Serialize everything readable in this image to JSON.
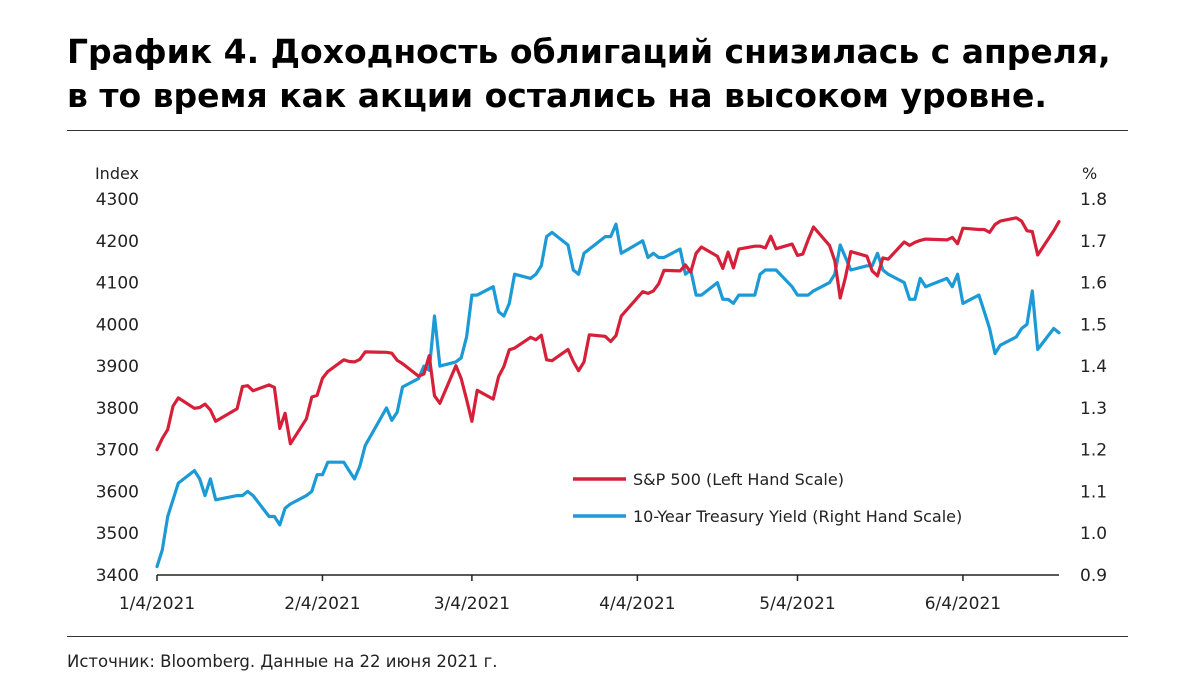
{
  "title": {
    "line1": "График 4. Доходность облигаций снизилась с апреля,",
    "line2": "в то время как акции остались на высоком уровне."
  },
  "source": "Источник: Bloomberg. Данные на 22 июня 2021 г.",
  "colors": {
    "sp500": "#d6203a",
    "treasury": "#1b9ad6",
    "axis": "#222222"
  },
  "chart_data": {
    "type": "line",
    "grid": false,
    "legend_position": "bottom-right",
    "left_axis": {
      "unit": "Index",
      "range": [
        3400,
        4300
      ],
      "ticks": [
        "3400",
        "3500",
        "3600",
        "3700",
        "3800",
        "3900",
        "4000",
        "4100",
        "4200",
        "4300"
      ]
    },
    "right_axis": {
      "unit": "%",
      "range": [
        0.9,
        1.8
      ],
      "ticks": [
        "0.9",
        "1.0",
        "1.1",
        "1.2",
        "1.3",
        "1.4",
        "1.5",
        "1.6",
        "1.7",
        "1.8"
      ]
    },
    "x_axis": {
      "range": [
        "2021-01-04",
        "2021-06-22"
      ],
      "tick_labels": [
        "1/4/2021",
        "2/4/2021",
        "3/4/2021",
        "4/4/2021",
        "5/4/2021",
        "6/4/2021"
      ],
      "tick_dates": [
        "2021-01-04",
        "2021-02-04",
        "2021-03-04",
        "2021-04-04",
        "2021-05-04",
        "2021-06-04"
      ]
    },
    "series": [
      {
        "name": "S&P 500 (Left Hand Scale)",
        "axis": "left",
        "x": [
          "2021-01-04",
          "2021-01-05",
          "2021-01-06",
          "2021-01-07",
          "2021-01-08",
          "2021-01-11",
          "2021-01-12",
          "2021-01-13",
          "2021-01-14",
          "2021-01-15",
          "2021-01-19",
          "2021-01-20",
          "2021-01-21",
          "2021-01-22",
          "2021-01-25",
          "2021-01-26",
          "2021-01-27",
          "2021-01-28",
          "2021-01-29",
          "2021-02-01",
          "2021-02-02",
          "2021-02-03",
          "2021-02-04",
          "2021-02-05",
          "2021-02-08",
          "2021-02-09",
          "2021-02-10",
          "2021-02-11",
          "2021-02-12",
          "2021-02-16",
          "2021-02-17",
          "2021-02-18",
          "2021-02-19",
          "2021-02-22",
          "2021-02-23",
          "2021-02-24",
          "2021-02-25",
          "2021-02-26",
          "2021-03-01",
          "2021-03-02",
          "2021-03-03",
          "2021-03-04",
          "2021-03-05",
          "2021-03-08",
          "2021-03-09",
          "2021-03-10",
          "2021-03-11",
          "2021-03-12",
          "2021-03-15",
          "2021-03-16",
          "2021-03-17",
          "2021-03-18",
          "2021-03-19",
          "2021-03-22",
          "2021-03-23",
          "2021-03-24",
          "2021-03-25",
          "2021-03-26",
          "2021-03-29",
          "2021-03-30",
          "2021-03-31",
          "2021-04-01",
          "2021-04-05",
          "2021-04-06",
          "2021-04-07",
          "2021-04-08",
          "2021-04-09",
          "2021-04-12",
          "2021-04-13",
          "2021-04-14",
          "2021-04-15",
          "2021-04-16",
          "2021-04-19",
          "2021-04-20",
          "2021-04-21",
          "2021-04-22",
          "2021-04-23",
          "2021-04-26",
          "2021-04-27",
          "2021-04-28",
          "2021-04-29",
          "2021-04-30",
          "2021-05-03",
          "2021-05-04",
          "2021-05-05",
          "2021-05-06",
          "2021-05-07",
          "2021-05-10",
          "2021-05-11",
          "2021-05-12",
          "2021-05-13",
          "2021-05-14",
          "2021-05-17",
          "2021-05-18",
          "2021-05-19",
          "2021-05-20",
          "2021-05-21",
          "2021-05-24",
          "2021-05-25",
          "2021-05-26",
          "2021-05-27",
          "2021-05-28",
          "2021-06-01",
          "2021-06-02",
          "2021-06-03",
          "2021-06-04",
          "2021-06-07",
          "2021-06-08",
          "2021-06-09",
          "2021-06-10",
          "2021-06-11",
          "2021-06-14",
          "2021-06-15",
          "2021-06-16",
          "2021-06-17",
          "2021-06-18",
          "2021-06-21",
          "2021-06-22"
        ],
        "y": [
          3700,
          3727,
          3748,
          3804,
          3824,
          3799,
          3801,
          3809,
          3795,
          3768,
          3798,
          3851,
          3853,
          3841,
          3855,
          3849,
          3751,
          3787,
          3714,
          3774,
          3826,
          3830,
          3871,
          3887,
          3915,
          3911,
          3910,
          3916,
          3934,
          3933,
          3931,
          3914,
          3906,
          3876,
          3881,
          3925,
          3829,
          3811,
          3901,
          3870,
          3820,
          3768,
          3842,
          3821,
          3875,
          3899,
          3939,
          3943,
          3969,
          3963,
          3974,
          3915,
          3913,
          3940,
          3911,
          3889,
          3910,
          3975,
          3971,
          3959,
          3973,
          4020,
          4078,
          4074,
          4080,
          4097,
          4129,
          4128,
          4142,
          4125,
          4170,
          4185,
          4163,
          4134,
          4173,
          4135,
          4180,
          4187,
          4187,
          4183,
          4211,
          4181,
          4192,
          4165,
          4168,
          4202,
          4233,
          4189,
          4152,
          4063,
          4113,
          4174,
          4163,
          4128,
          4116,
          4159,
          4156,
          4197,
          4189,
          4196,
          4201,
          4204,
          4202,
          4208,
          4193,
          4230,
          4227,
          4227,
          4220,
          4239,
          4247,
          4255,
          4247,
          4224,
          4222,
          4166,
          4224,
          4246
        ]
      },
      {
        "name": "10-Year Treasury Yield (Right Hand Scale)",
        "axis": "right",
        "x": [
          "2021-01-04",
          "2021-01-05",
          "2021-01-06",
          "2021-01-07",
          "2021-01-08",
          "2021-01-11",
          "2021-01-12",
          "2021-01-13",
          "2021-01-14",
          "2021-01-15",
          "2021-01-19",
          "2021-01-20",
          "2021-01-21",
          "2021-01-22",
          "2021-01-25",
          "2021-01-26",
          "2021-01-27",
          "2021-01-28",
          "2021-01-29",
          "2021-02-01",
          "2021-02-02",
          "2021-02-03",
          "2021-02-04",
          "2021-02-05",
          "2021-02-08",
          "2021-02-09",
          "2021-02-10",
          "2021-02-11",
          "2021-02-12",
          "2021-02-16",
          "2021-02-17",
          "2021-02-18",
          "2021-02-19",
          "2021-02-22",
          "2021-02-23",
          "2021-02-24",
          "2021-02-25",
          "2021-02-26",
          "2021-03-01",
          "2021-03-02",
          "2021-03-03",
          "2021-03-04",
          "2021-03-05",
          "2021-03-08",
          "2021-03-09",
          "2021-03-10",
          "2021-03-11",
          "2021-03-12",
          "2021-03-15",
          "2021-03-16",
          "2021-03-17",
          "2021-03-18",
          "2021-03-19",
          "2021-03-22",
          "2021-03-23",
          "2021-03-24",
          "2021-03-25",
          "2021-03-26",
          "2021-03-29",
          "2021-03-30",
          "2021-03-31",
          "2021-04-01",
          "2021-04-05",
          "2021-04-06",
          "2021-04-07",
          "2021-04-08",
          "2021-04-09",
          "2021-04-12",
          "2021-04-13",
          "2021-04-14",
          "2021-04-15",
          "2021-04-16",
          "2021-04-19",
          "2021-04-20",
          "2021-04-21",
          "2021-04-22",
          "2021-04-23",
          "2021-04-26",
          "2021-04-27",
          "2021-04-28",
          "2021-04-29",
          "2021-04-30",
          "2021-05-03",
          "2021-05-04",
          "2021-05-05",
          "2021-05-06",
          "2021-05-07",
          "2021-05-10",
          "2021-05-11",
          "2021-05-12",
          "2021-05-13",
          "2021-05-14",
          "2021-05-17",
          "2021-05-18",
          "2021-05-19",
          "2021-05-20",
          "2021-05-21",
          "2021-05-24",
          "2021-05-25",
          "2021-05-26",
          "2021-05-27",
          "2021-05-28",
          "2021-06-01",
          "2021-06-02",
          "2021-06-03",
          "2021-06-04",
          "2021-06-07",
          "2021-06-08",
          "2021-06-09",
          "2021-06-10",
          "2021-06-11",
          "2021-06-14",
          "2021-06-15",
          "2021-06-16",
          "2021-06-17",
          "2021-06-18",
          "2021-06-21",
          "2021-06-22"
        ],
        "y": [
          0.92,
          0.96,
          1.04,
          1.08,
          1.12,
          1.15,
          1.13,
          1.09,
          1.13,
          1.08,
          1.09,
          1.09,
          1.1,
          1.09,
          1.04,
          1.04,
          1.02,
          1.06,
          1.07,
          1.09,
          1.1,
          1.14,
          1.14,
          1.17,
          1.17,
          1.15,
          1.13,
          1.16,
          1.21,
          1.3,
          1.27,
          1.29,
          1.35,
          1.37,
          1.4,
          1.39,
          1.52,
          1.4,
          1.41,
          1.42,
          1.47,
          1.57,
          1.57,
          1.59,
          1.53,
          1.52,
          1.55,
          1.62,
          1.61,
          1.62,
          1.64,
          1.71,
          1.72,
          1.69,
          1.63,
          1.62,
          1.67,
          1.68,
          1.71,
          1.71,
          1.74,
          1.67,
          1.7,
          1.66,
          1.67,
          1.66,
          1.66,
          1.68,
          1.62,
          1.63,
          1.57,
          1.57,
          1.6,
          1.56,
          1.56,
          1.55,
          1.57,
          1.57,
          1.62,
          1.63,
          1.63,
          1.63,
          1.59,
          1.57,
          1.57,
          1.57,
          1.58,
          1.6,
          1.62,
          1.69,
          1.66,
          1.63,
          1.64,
          1.64,
          1.67,
          1.63,
          1.62,
          1.6,
          1.56,
          1.56,
          1.61,
          1.59,
          1.61,
          1.59,
          1.62,
          1.55,
          1.57,
          1.53,
          1.49,
          1.43,
          1.45,
          1.47,
          1.49,
          1.5,
          1.58,
          1.44,
          1.49,
          1.48
        ]
      }
    ]
  }
}
